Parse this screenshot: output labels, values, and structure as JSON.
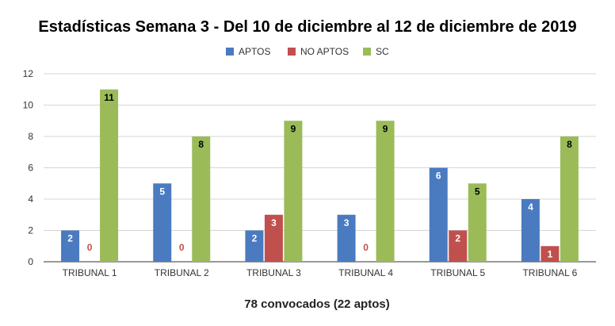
{
  "chart_data": {
    "type": "bar",
    "title": "Estadísticas Semana 3 - Del 10 de diciembre al 12 de diciembre de 2019",
    "xlabel": "78 convocados (22 aptos)",
    "ylabel": "",
    "categories": [
      "TRIBUNAL 1",
      "TRIBUNAL 2",
      "TRIBUNAL 3",
      "TRIBUNAL 4",
      "TRIBUNAL 5",
      "TRIBUNAL 6"
    ],
    "series": [
      {
        "name": "APTOS",
        "color": "#4a7bc0",
        "values": [
          2,
          5,
          2,
          3,
          6,
          4
        ]
      },
      {
        "name": "NO APTOS",
        "color": "#c0504d",
        "values": [
          0,
          0,
          3,
          0,
          2,
          1
        ]
      },
      {
        "name": "SC",
        "color": "#9bbb59",
        "values": [
          11,
          8,
          9,
          9,
          5,
          8
        ]
      }
    ],
    "ylim": [
      0,
      12
    ],
    "yticks": [
      0,
      2,
      4,
      6,
      8,
      10,
      12
    ],
    "grid": true,
    "legend_position": "top"
  }
}
